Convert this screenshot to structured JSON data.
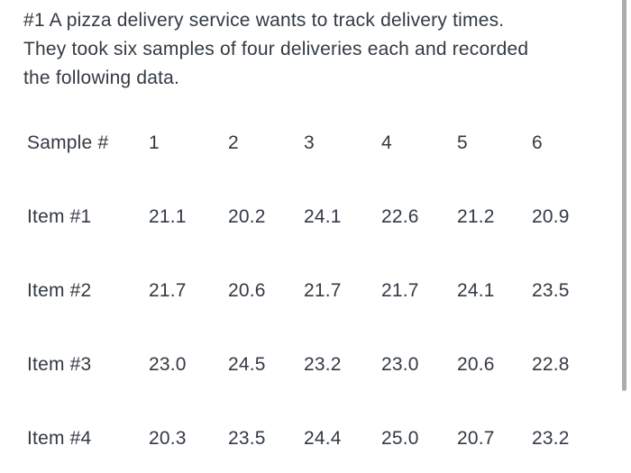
{
  "colors": {
    "text": "#333a43",
    "background": "#ffffff",
    "scrollbar": "#acacac"
  },
  "problem": {
    "full_text": "#1 A pizza delivery service wants to track delivery times. They took six samples of four deliveries each and recorded the following data.",
    "lines": [
      "#1 A pizza delivery service wants to track delivery times.",
      "They took six samples of four deliveries each and recorded",
      "the following data."
    ]
  },
  "table": {
    "header_row": {
      "label": "Sample #",
      "values": [
        "1",
        "2",
        "3",
        "4",
        "5",
        "6"
      ]
    },
    "rows": [
      {
        "label": "Item #1",
        "values": [
          "21.1",
          "20.2",
          "24.1",
          "22.6",
          "21.2",
          "20.9"
        ]
      },
      {
        "label": "Item #2",
        "values": [
          "21.7",
          "20.6",
          "21.7",
          "21.7",
          "24.1",
          "23.5"
        ]
      },
      {
        "label": "Item #3",
        "values": [
          "23.0",
          "24.5",
          "23.2",
          "23.0",
          "20.6",
          "22.8"
        ]
      },
      {
        "label": "Item #4",
        "values": [
          "20.3",
          "23.5",
          "24.4",
          "25.0",
          "20.7",
          "23.2"
        ]
      }
    ]
  }
}
